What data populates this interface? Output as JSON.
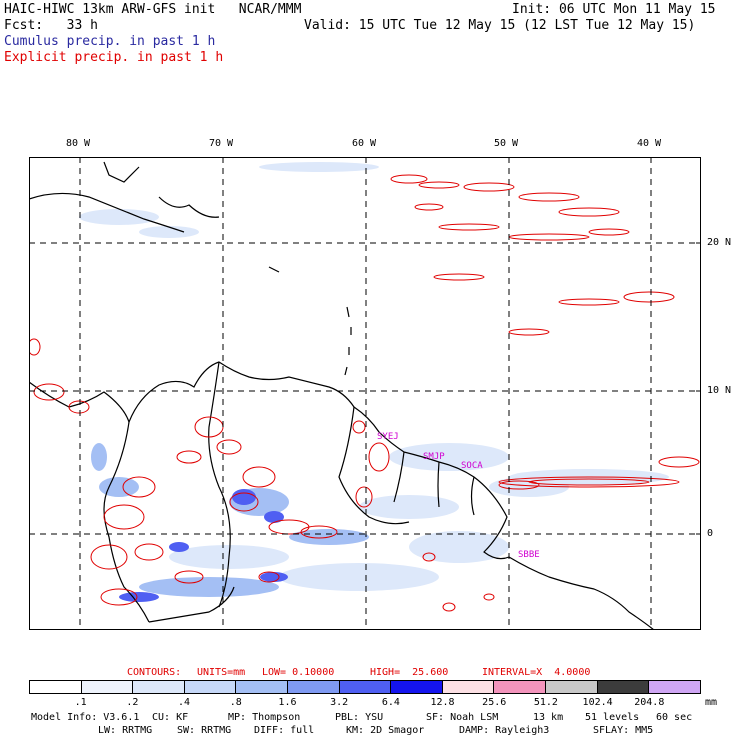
{
  "header": {
    "line1_left": "HAIC-HIWC 13km ARW-GFS init   NCAR/MMM",
    "line1_right": "Init: 06 UTC Mon 11 May 15",
    "line2_left": "Fcst:   33 h",
    "line2_right": "Valid: 15 UTC Tue 12 May 15 (12 LST Tue 12 May 15)",
    "line3": "Cumulus precip. in past 1 h",
    "line4": "Explicit precip. in past 1 h"
  },
  "map": {
    "lon_labels": [
      "80 W",
      "70 W",
      "60 W",
      "50 W",
      "40 W"
    ],
    "lat_labels": [
      "20 N",
      "10 N",
      "0"
    ],
    "stations": [
      "SYEJ",
      "SMJP",
      "SOCA",
      "SBBE"
    ],
    "colors": {
      "coast": "#000000",
      "explicit_contour": "#e00000",
      "station_label": "#d000d0",
      "grid": "#000000"
    }
  },
  "contours": {
    "label_contours": "CONTOURS:",
    "label_units": "UNITS=mm",
    "label_low": "LOW= 0.10000",
    "label_high": "HIGH=  25.600",
    "label_interval": "INTERVAL=X  4.0000"
  },
  "legend": {
    "unit": "mm",
    "ticks": [
      ".1",
      ".2",
      ".4",
      ".8",
      "1.6",
      "3.2",
      "6.4",
      "12.8",
      "25.6",
      "51.2",
      "102.4",
      "204.8"
    ],
    "colors": [
      "#ffffff",
      "#eef3fc",
      "#dde8fa",
      "#c6d8f8",
      "#a4bff4",
      "#7f9af2",
      "#4f5ff2",
      "#1414ee",
      "#fce0e4",
      "#f394bc",
      "#c8c8c8",
      "#3c3c3c",
      "#cfa6f4"
    ]
  },
  "model_info": {
    "line1_a": "Model Info: V3.6.1",
    "line1_b": "CU: KF",
    "line1_c": "MP: Thompson",
    "line1_d": "PBL: YSU",
    "line1_e": "SF: Noah LSM",
    "line1_f": "13 km",
    "line1_g": "51 levels",
    "line1_h": "60 sec",
    "line2_a": "LW: RRTMG",
    "line2_b": "SW: RRTMG",
    "line2_c": "DIFF: full",
    "line2_d": "KM: 2D Smagor",
    "line2_e": "DAMP: Rayleigh3",
    "line2_f": "SFLAY: MM5"
  }
}
